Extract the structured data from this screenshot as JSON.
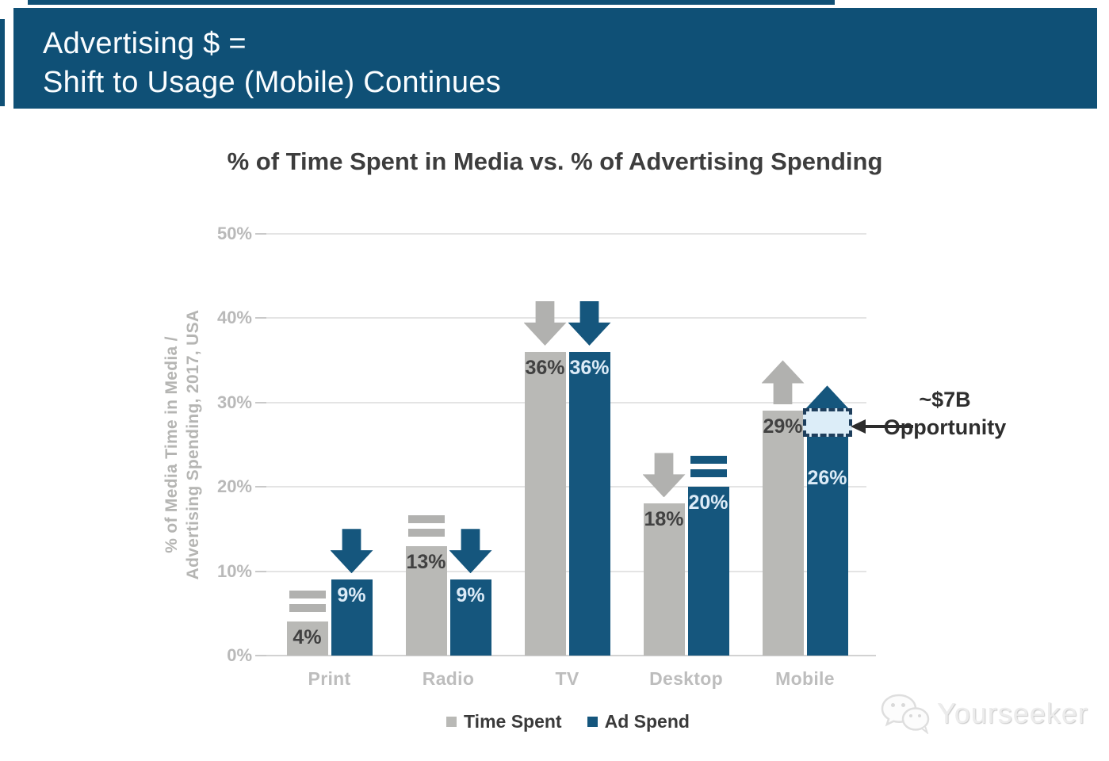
{
  "banner": {
    "line1": "Advertising $ =",
    "line2": "Shift to Usage (Mobile) Continues"
  },
  "chart_data": {
    "type": "bar",
    "title": "% of Time Spent in Media vs. % of Advertising Spending",
    "categories": [
      "Print",
      "Radio",
      "TV",
      "Desktop",
      "Mobile"
    ],
    "series": [
      {
        "name": "Time Spent",
        "color_key": "gray",
        "values": [
          4,
          13,
          36,
          18,
          29
        ],
        "trend_icons": [
          "equals",
          "equals",
          "arrow-down",
          "arrow-down",
          "arrow-up"
        ]
      },
      {
        "name": "Ad Spend",
        "color_key": "blue",
        "values": [
          9,
          9,
          36,
          20,
          26
        ],
        "trend_icons": [
          "arrow-down",
          "arrow-down",
          "arrow-down",
          "equals",
          "arrow-up"
        ]
      }
    ],
    "ylabel": "% of Media Time in Media /\nAdvertising Spending, 2017, USA",
    "ylim": [
      0,
      50
    ],
    "yticks": [
      "0%",
      "10%",
      "20%",
      "30%",
      "40%",
      "50%"
    ],
    "grid": true,
    "legend_position": "bottom",
    "annotation": {
      "line1": "~$7B",
      "line2": "Opportunity",
      "category": "Mobile",
      "from_pct": 29,
      "to_pct": 26
    }
  },
  "watermark": {
    "text": "Yourseeker"
  },
  "colors": {
    "banner_blue": "#0f5076",
    "bar_blue": "#15567d",
    "bar_gray": "#b9b9b6",
    "icon_gray": "#b1b1af",
    "grid": "#e4e4e4",
    "axis_text": "#b9b9b9",
    "title_text": "#3d3d3d",
    "value_dark": "#414141",
    "value_light": "#dcebf7",
    "opportunity_fill": "#dcedf8",
    "opportunity_border": "#1e3e5c",
    "annotation_text": "#2e2e2e"
  }
}
